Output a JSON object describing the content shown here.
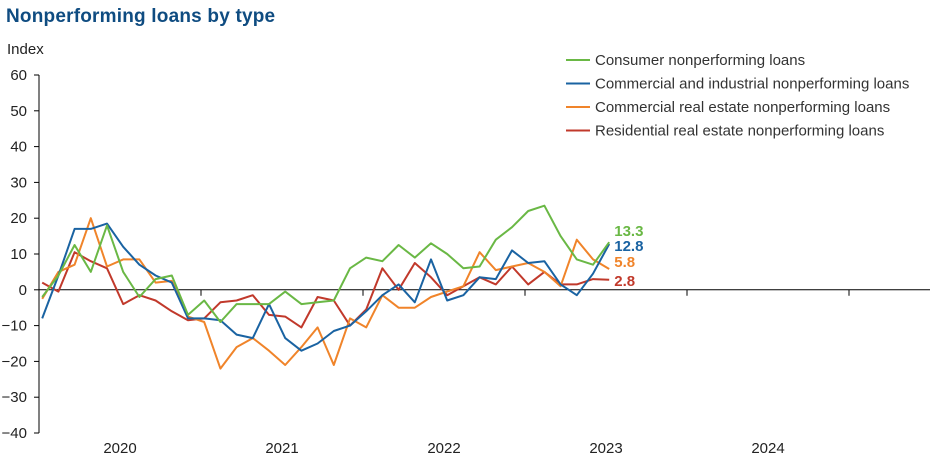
{
  "title": "Nonperforming loans by type",
  "colors": {
    "consumer": "#6ab845",
    "ci": "#1a63a2",
    "cre": "#f0842a",
    "rre": "#c1392b",
    "axis": "#000000",
    "title": "#0f4c81"
  },
  "chart_data": {
    "type": "line",
    "ylabel": "Index",
    "ylim": [
      -40,
      60
    ],
    "yticks": [
      60,
      50,
      40,
      30,
      20,
      10,
      0,
      -10,
      -20,
      -30,
      -40
    ],
    "xlim": [
      2019.5,
      2025.0
    ],
    "xticks": [
      {
        "label": "2020",
        "x": 2020.0
      },
      {
        "label": "2021",
        "x": 2021.0
      },
      {
        "label": "2022",
        "x": 2022.0
      },
      {
        "label": "2023",
        "x": 2023.0
      },
      {
        "label": "2024",
        "x": 2024.0
      }
    ],
    "grid": false,
    "legend_position": "top-right",
    "series": [
      {
        "key": "consumer",
        "name": "Consumer nonperforming loans",
        "end_label": "13.3",
        "points": [
          [
            2019.52,
            -2
          ],
          [
            2019.62,
            4
          ],
          [
            2019.72,
            12.5
          ],
          [
            2019.82,
            5
          ],
          [
            2019.92,
            18
          ],
          [
            2020.02,
            5
          ],
          [
            2020.12,
            -2
          ],
          [
            2020.22,
            3
          ],
          [
            2020.32,
            4
          ],
          [
            2020.42,
            -7
          ],
          [
            2020.52,
            -3
          ],
          [
            2020.62,
            -9
          ],
          [
            2020.72,
            -4
          ],
          [
            2020.82,
            -4
          ],
          [
            2020.92,
            -4
          ],
          [
            2021.02,
            -0.5
          ],
          [
            2021.12,
            -4
          ],
          [
            2021.22,
            -3.5
          ],
          [
            2021.32,
            -3
          ],
          [
            2021.42,
            6
          ],
          [
            2021.52,
            9
          ],
          [
            2021.62,
            8
          ],
          [
            2021.72,
            12.5
          ],
          [
            2021.82,
            9
          ],
          [
            2021.92,
            13
          ],
          [
            2022.02,
            10
          ],
          [
            2022.12,
            6
          ],
          [
            2022.22,
            6.5
          ],
          [
            2022.32,
            14
          ],
          [
            2022.42,
            17.5
          ],
          [
            2022.52,
            22
          ],
          [
            2022.62,
            23.5
          ],
          [
            2022.72,
            15
          ],
          [
            2022.82,
            8.5
          ],
          [
            2022.92,
            7
          ],
          [
            2023.02,
            13.3
          ]
        ]
      },
      {
        "key": "ci",
        "name": "Commercial and industrial nonperforming loans",
        "end_label": "12.8",
        "points": [
          [
            2019.52,
            -8
          ],
          [
            2019.62,
            4
          ],
          [
            2019.72,
            17
          ],
          [
            2019.82,
            17
          ],
          [
            2019.92,
            18.5
          ],
          [
            2020.02,
            12
          ],
          [
            2020.12,
            7
          ],
          [
            2020.22,
            4
          ],
          [
            2020.32,
            2
          ],
          [
            2020.42,
            -8
          ],
          [
            2020.52,
            -8
          ],
          [
            2020.62,
            -8.5
          ],
          [
            2020.72,
            -12.5
          ],
          [
            2020.82,
            -13.5
          ],
          [
            2020.92,
            -4
          ],
          [
            2021.02,
            -13.5
          ],
          [
            2021.12,
            -17
          ],
          [
            2021.22,
            -15
          ],
          [
            2021.32,
            -11.5
          ],
          [
            2021.42,
            -10
          ],
          [
            2021.52,
            -6
          ],
          [
            2021.62,
            -1.5
          ],
          [
            2021.72,
            1.5
          ],
          [
            2021.82,
            -3.5
          ],
          [
            2021.92,
            8.5
          ],
          [
            2022.02,
            -3
          ],
          [
            2022.12,
            -1.5
          ],
          [
            2022.22,
            3.5
          ],
          [
            2022.32,
            3
          ],
          [
            2022.42,
            11
          ],
          [
            2022.52,
            7.5
          ],
          [
            2022.62,
            8
          ],
          [
            2022.72,
            1.5
          ],
          [
            2022.82,
            -1.5
          ],
          [
            2022.92,
            4.5
          ],
          [
            2023.02,
            12.8
          ]
        ]
      },
      {
        "key": "cre",
        "name": "Commercial real estate nonperforming loans",
        "end_label": "5.8",
        "points": [
          [
            2019.52,
            -2.5
          ],
          [
            2019.62,
            5
          ],
          [
            2019.72,
            7
          ],
          [
            2019.82,
            20
          ],
          [
            2019.92,
            6.5
          ],
          [
            2020.02,
            8.5
          ],
          [
            2020.12,
            8.5
          ],
          [
            2020.22,
            2
          ],
          [
            2020.32,
            2.5
          ],
          [
            2020.42,
            -7.5
          ],
          [
            2020.52,
            -9
          ],
          [
            2020.62,
            -22
          ],
          [
            2020.72,
            -16
          ],
          [
            2020.82,
            -13.5
          ],
          [
            2020.92,
            -17
          ],
          [
            2021.02,
            -21
          ],
          [
            2021.12,
            -16
          ],
          [
            2021.22,
            -10.5
          ],
          [
            2021.32,
            -21
          ],
          [
            2021.42,
            -8
          ],
          [
            2021.52,
            -10.5
          ],
          [
            2021.62,
            -1.5
          ],
          [
            2021.72,
            -5
          ],
          [
            2021.82,
            -5
          ],
          [
            2021.92,
            -2
          ],
          [
            2022.02,
            -0.5
          ],
          [
            2022.12,
            1
          ],
          [
            2022.22,
            10.5
          ],
          [
            2022.32,
            5.5
          ],
          [
            2022.42,
            6.5
          ],
          [
            2022.52,
            7.5
          ],
          [
            2022.62,
            5
          ],
          [
            2022.72,
            1
          ],
          [
            2022.82,
            14
          ],
          [
            2022.92,
            8.5
          ],
          [
            2023.02,
            5.8
          ]
        ]
      },
      {
        "key": "rre",
        "name": "Residential real estate nonperforming loans",
        "end_label": "2.8",
        "points": [
          [
            2019.52,
            2
          ],
          [
            2019.62,
            -0.5
          ],
          [
            2019.72,
            10.5
          ],
          [
            2019.82,
            8
          ],
          [
            2019.92,
            6
          ],
          [
            2020.02,
            -4
          ],
          [
            2020.12,
            -1.5
          ],
          [
            2020.22,
            -3
          ],
          [
            2020.32,
            -6
          ],
          [
            2020.42,
            -8.5
          ],
          [
            2020.52,
            -8
          ],
          [
            2020.62,
            -3.5
          ],
          [
            2020.72,
            -3
          ],
          [
            2020.82,
            -1.5
          ],
          [
            2020.92,
            -7
          ],
          [
            2021.02,
            -7.5
          ],
          [
            2021.12,
            -10.5
          ],
          [
            2021.22,
            -2
          ],
          [
            2021.32,
            -3
          ],
          [
            2021.42,
            -10
          ],
          [
            2021.52,
            -5.5
          ],
          [
            2021.62,
            6
          ],
          [
            2021.72,
            0
          ],
          [
            2021.82,
            7.5
          ],
          [
            2021.92,
            3.5
          ],
          [
            2022.02,
            -1.5
          ],
          [
            2022.12,
            1
          ],
          [
            2022.22,
            3.5
          ],
          [
            2022.32,
            1.5
          ],
          [
            2022.42,
            6.5
          ],
          [
            2022.52,
            1.5
          ],
          [
            2022.62,
            5
          ],
          [
            2022.72,
            1.5
          ],
          [
            2022.82,
            1.5
          ],
          [
            2022.92,
            3
          ],
          [
            2023.02,
            2.8
          ]
        ]
      }
    ]
  }
}
